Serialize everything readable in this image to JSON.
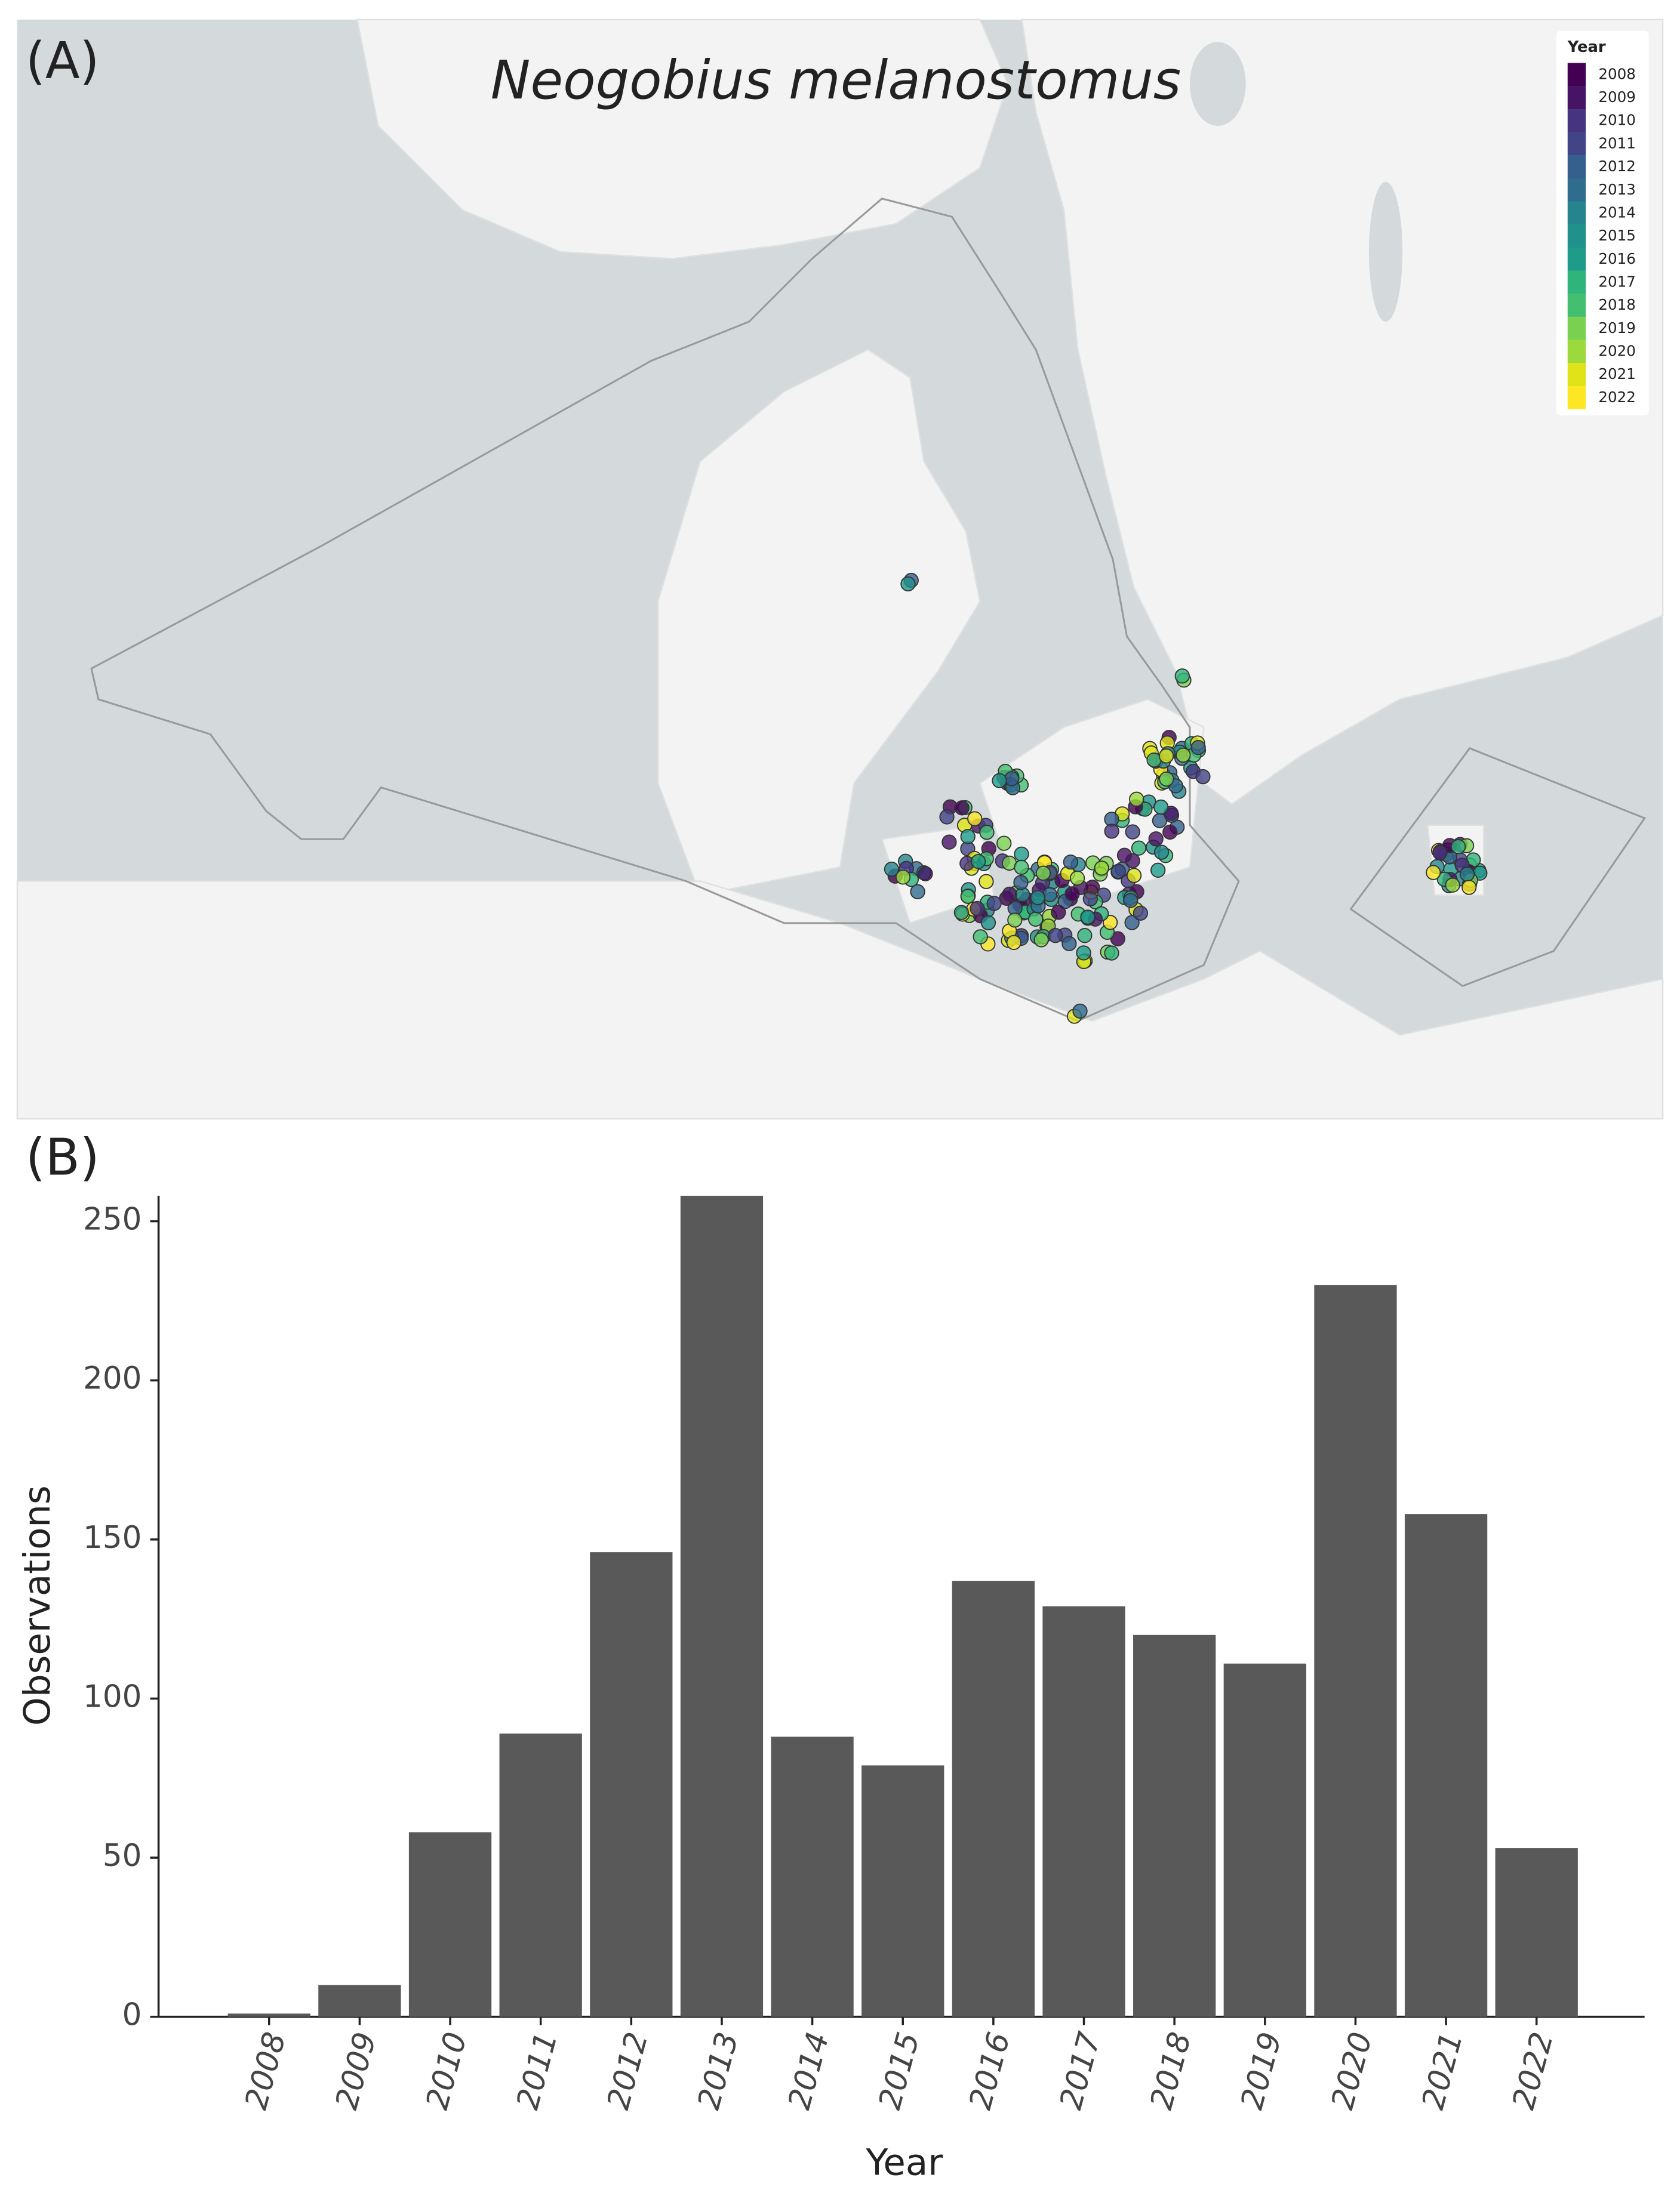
{
  "map": {
    "label": "(A)",
    "title": "Neogobius melanostomus",
    "legend": {
      "title": "Year",
      "items": [
        {
          "label": "2008",
          "color": "#440154"
        },
        {
          "label": "2009",
          "color": "#471365"
        },
        {
          "label": "2010",
          "color": "#463480"
        },
        {
          "label": "2011",
          "color": "#414487"
        },
        {
          "label": "2012",
          "color": "#355f8d"
        },
        {
          "label": "2013",
          "color": "#2f6c8e"
        },
        {
          "label": "2014",
          "color": "#25848e"
        },
        {
          "label": "2015",
          "color": "#21918c"
        },
        {
          "label": "2016",
          "color": "#1e9c89"
        },
        {
          "label": "2017",
          "color": "#2fb47c"
        },
        {
          "label": "2018",
          "color": "#44bf70"
        },
        {
          "label": "2019",
          "color": "#7ad151"
        },
        {
          "label": "2020",
          "color": "#9bd93c"
        },
        {
          "label": "2021",
          "color": "#dfe318"
        },
        {
          "label": "2022",
          "color": "#fde725"
        }
      ]
    }
  },
  "chart_data": {
    "type": "bar",
    "panel_label": "(B)",
    "x_label": "Year",
    "y_label": "Observations",
    "categories": [
      "2008",
      "2009",
      "2010",
      "2011",
      "2012",
      "2013",
      "2014",
      "2015",
      "2016",
      "2017",
      "2018",
      "2019",
      "2020",
      "2021",
      "2022"
    ],
    "values": [
      1,
      10,
      58,
      89,
      146,
      258,
      88,
      79,
      137,
      129,
      120,
      111,
      230,
      158,
      53
    ],
    "color": "#595959",
    "ylim": [
      0,
      258
    ],
    "yticks": [
      0,
      50,
      100,
      150,
      200,
      250
    ],
    "grid": false
  }
}
